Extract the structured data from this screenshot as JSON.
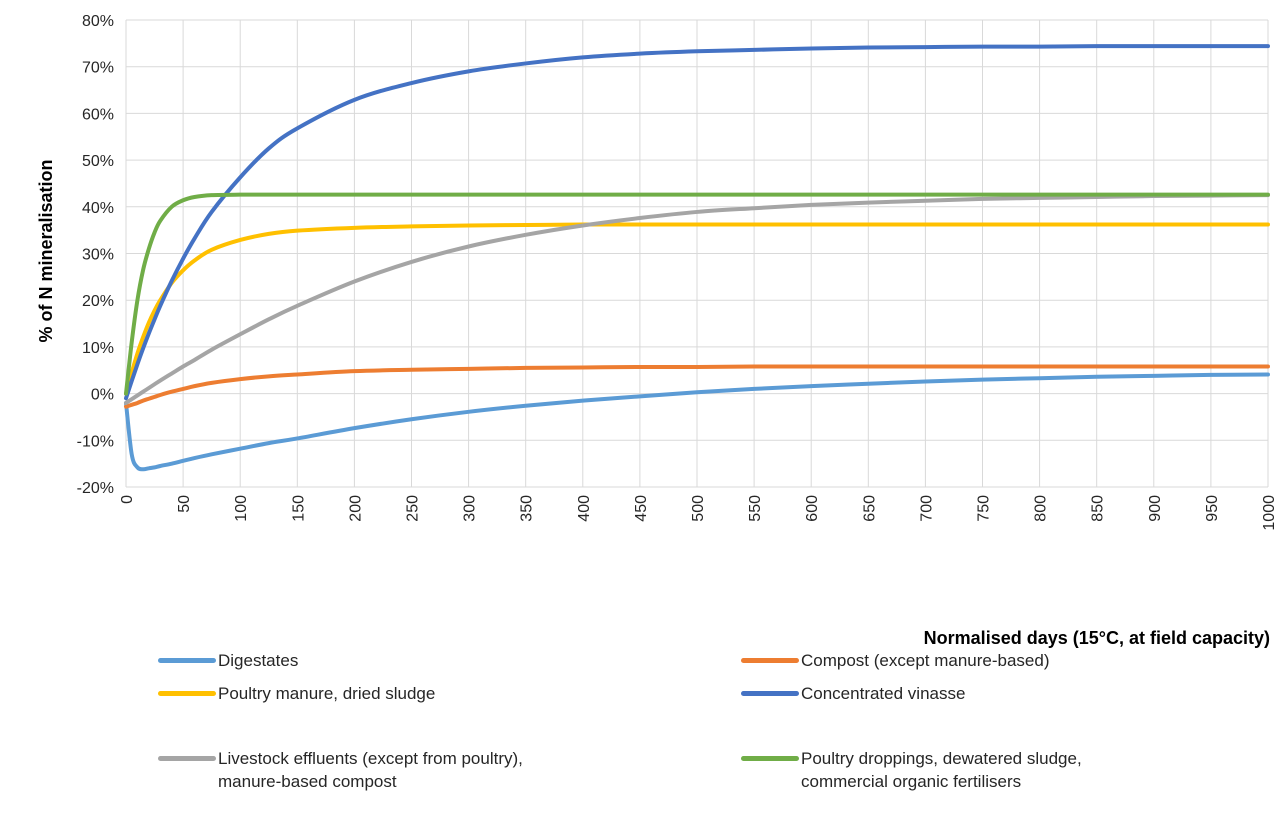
{
  "chart_data": {
    "type": "line",
    "title": "",
    "xlabel": "Normalised days (15°C, at field capacity)",
    "ylabel": "% of N mineralisation",
    "xlim": [
      0,
      1000
    ],
    "ylim": [
      -20,
      80
    ],
    "x_ticks": [
      "0",
      "50",
      "100",
      "150",
      "200",
      "250",
      "300",
      "350",
      "400",
      "450",
      "500",
      "550",
      "600",
      "650",
      "700",
      "750",
      "800",
      "850",
      "900",
      "950",
      "1000"
    ],
    "y_ticks": [
      "80%",
      "70%",
      "60%",
      "50%",
      "40%",
      "30%",
      "20%",
      "10%",
      "0%",
      "-10%",
      "-20%"
    ],
    "grid": "vertical and horizontal",
    "legend_position": "bottom",
    "x": [
      0,
      5,
      10,
      15,
      20,
      25,
      30,
      40,
      50,
      60,
      75,
      100,
      125,
      150,
      200,
      250,
      300,
      350,
      400,
      450,
      500,
      550,
      600,
      650,
      700,
      750,
      800,
      850,
      900,
      950,
      1000
    ],
    "series": [
      {
        "name": "Digestates",
        "color": "#5B9BD5",
        "values": [
          -2,
          -13,
          -15.8,
          -16.2,
          -16.0,
          -15.8,
          -15.5,
          -15.0,
          -14.4,
          -13.8,
          -13.0,
          -11.8,
          -10.6,
          -9.6,
          -7.4,
          -5.5,
          -3.9,
          -2.6,
          -1.5,
          -0.6,
          0.3,
          1.0,
          1.6,
          2.1,
          2.6,
          3.0,
          3.3,
          3.6,
          3.8,
          4.0,
          4.1
        ]
      },
      {
        "name": "Compost (except manure-based)",
        "color": "#ED7D31",
        "values": [
          -2.8,
          -2.4,
          -2.0,
          -1.5,
          -1.1,
          -0.7,
          -0.3,
          0.4,
          1.0,
          1.6,
          2.3,
          3.1,
          3.7,
          4.1,
          4.8,
          5.1,
          5.3,
          5.5,
          5.6,
          5.7,
          5.7,
          5.8,
          5.8,
          5.8,
          5.8,
          5.8,
          5.8,
          5.8,
          5.8,
          5.8,
          5.8
        ]
      },
      {
        "name": "Poultry manure, dried sludge",
        "color": "#FFC000",
        "values": [
          0,
          4.5,
          8.6,
          12.1,
          15.2,
          17.8,
          20.0,
          23.7,
          26.4,
          28.5,
          30.8,
          32.9,
          34.2,
          34.9,
          35.5,
          35.8,
          36.0,
          36.1,
          36.2,
          36.2,
          36.2,
          36.2,
          36.2,
          36.2,
          36.2,
          36.2,
          36.2,
          36.2,
          36.2,
          36.2,
          36.2
        ]
      },
      {
        "name": "Concentrated vinasse",
        "color": "#4472C4",
        "values": [
          -1,
          2.7,
          6.3,
          9.7,
          12.9,
          15.9,
          18.8,
          24.1,
          28.9,
          33.2,
          38.9,
          46.3,
          52.5,
          56.8,
          62.9,
          66.5,
          69.0,
          70.7,
          72.0,
          72.8,
          73.3,
          73.6,
          73.9,
          74.1,
          74.2,
          74.3,
          74.3,
          74.4,
          74.4,
          74.4,
          74.4
        ]
      },
      {
        "name": "Livestock effluents (except from poultry),\nmanure-based compost",
        "color": "#A5A5A5",
        "values": [
          -2,
          -1.2,
          -0.4,
          0.4,
          1.2,
          2.0,
          2.8,
          4.3,
          5.8,
          7.2,
          9.4,
          12.7,
          15.9,
          18.8,
          24.0,
          28.2,
          31.5,
          34.0,
          36.0,
          37.6,
          38.9,
          39.7,
          40.4,
          40.9,
          41.3,
          41.7,
          41.9,
          42.1,
          42.3,
          42.4,
          42.5
        ]
      },
      {
        "name": "Poultry droppings, dewatered sludge,\ncommercial organic fertilisers",
        "color": "#70AD47",
        "values": [
          0,
          11,
          20,
          26.5,
          31,
          34.5,
          37,
          40,
          41.4,
          42.1,
          42.5,
          42.6,
          42.6,
          42.6,
          42.6,
          42.6,
          42.6,
          42.6,
          42.6,
          42.6,
          42.6,
          42.6,
          42.6,
          42.6,
          42.6,
          42.6,
          42.6,
          42.6,
          42.6,
          42.6,
          42.6
        ]
      }
    ]
  }
}
